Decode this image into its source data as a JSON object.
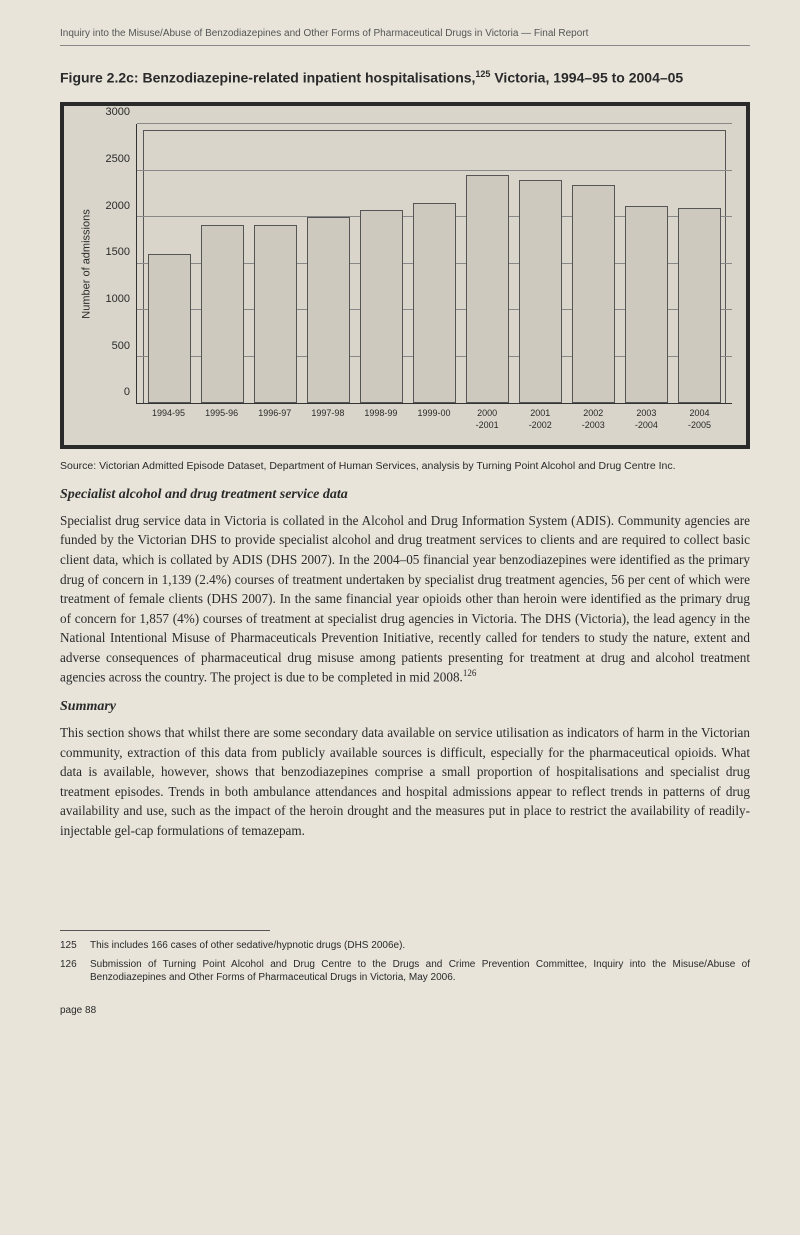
{
  "running_header": "Inquiry into the Misuse/Abuse of Benzodiazepines and Other Forms of Pharmaceutical Drugs in Victoria — Final Report",
  "figure": {
    "prefix": "Figure 2.2c:",
    "title_part1": " Benzodiazepine-related inpatient hospitalisations,",
    "sup": "125",
    "title_part2": " Victoria, 1994–95 to 2004–05"
  },
  "chart": {
    "type": "bar",
    "ylabel": "Number of admissions",
    "ylim": [
      0,
      3000
    ],
    "ytick_step": 500,
    "yticks": [
      0,
      500,
      1000,
      1500,
      2000,
      2500,
      3000
    ],
    "categories": [
      "1994-95",
      "1995-96",
      "1996-97",
      "1997-98",
      "1998-99",
      "1999-00",
      "2000\n-2001",
      "2001\n-2002",
      "2002\n-2003",
      "2003\n-2004",
      "2004\n-2005"
    ],
    "values": [
      1600,
      1920,
      1920,
      2000,
      2080,
      2150,
      2450,
      2400,
      2350,
      2120,
      2100
    ],
    "bar_color": "#cdc9be",
    "bar_border": "#555555",
    "grid_color": "#888888",
    "plot_bg": "#d9d5ca",
    "axis_color": "#333333",
    "label_fontsize": 11,
    "tick_fontsize": 9
  },
  "source": "Source: Victorian Admitted Episode Dataset, Department of Human Services, analysis by Turning Point Alcohol and Drug Centre Inc.",
  "subhead1": "Specialist alcohol and drug treatment service data",
  "para1": "Specialist drug service data in Victoria is collated in the Alcohol and Drug Information System (ADIS). Community agencies are funded by the Victorian DHS to provide specialist alcohol and drug treatment services to clients and are required to collect basic client data, which is collated by ADIS (DHS 2007). In the 2004–05 financial year benzodiazepines were identified as the primary drug of concern in 1,139 (2.4%) courses of treatment undertaken by specialist drug treatment agencies, 56 per cent of which were treatment of female clients (DHS 2007). In the same financial year opioids other than heroin were identified as the primary drug of concern for 1,857 (4%) courses of treatment at specialist drug agencies in Victoria. The DHS (Victoria), the lead agency in the National Intentional Misuse of Pharmaceuticals Prevention Initiative, recently called for tenders to study the nature, extent and adverse consequences of pharmaceutical drug misuse among patients presenting for treatment at drug and alcohol treatment agencies across the country. The project is due to be completed in mid 2008.",
  "para1_sup": "126",
  "subhead2": "Summary",
  "para2": "This section shows that whilst there are some secondary data available on service utilisation as indicators of harm in the Victorian community, extraction of this data from publicly available sources is difficult, especially for the pharmaceutical opioids. What data is available, however, shows that benzodiazepines comprise a small proportion of hospitalisations and specialist drug treatment episodes. Trends in both ambulance attendances and hospital admissions appear to reflect trends in patterns of drug availability and use, such as the impact of the heroin drought and the measures put in place to restrict the availability of readily-injectable gel-cap formulations of temazepam.",
  "footnotes": [
    {
      "num": "125",
      "text": "This includes 166 cases of other sedative/hypnotic drugs (DHS 2006e)."
    },
    {
      "num": "126",
      "text": "Submission of Turning Point Alcohol and Drug Centre to the Drugs and Crime Prevention Committee, Inquiry into the Misuse/Abuse of Benzodiazepines and Other Forms of Pharmaceutical Drugs in Victoria, May 2006."
    }
  ],
  "page_number": "page 88"
}
